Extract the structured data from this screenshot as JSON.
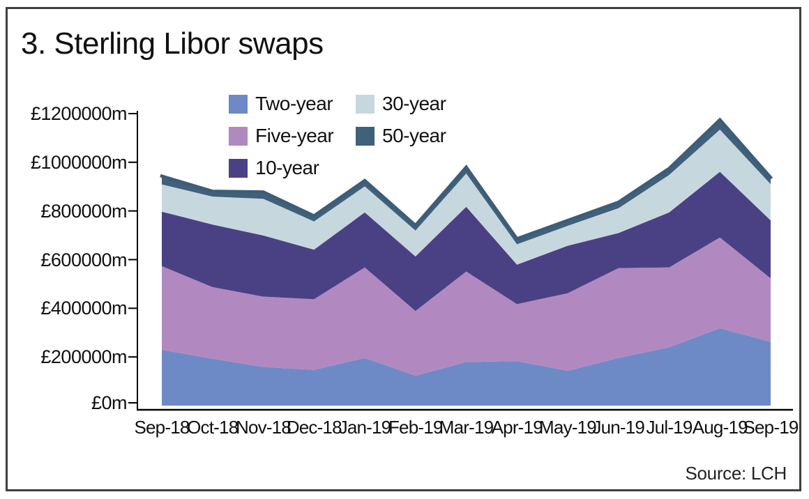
{
  "title": "3. Sterling Libor swaps",
  "source_label": "Source: LCH",
  "chart_data": {
    "type": "area",
    "stacked": true,
    "title": "3. Sterling Libor swaps",
    "xlabel": "",
    "ylabel": "",
    "unit": "£m",
    "grid": false,
    "legend_position": "top-left, two columns",
    "ylim": [
      0,
      1200000
    ],
    "y_ticks": [
      {
        "value": 0,
        "label": "£0m"
      },
      {
        "value": 200000,
        "label": "£200000m"
      },
      {
        "value": 400000,
        "label": "£400000m"
      },
      {
        "value": 600000,
        "label": "£600000m"
      },
      {
        "value": 800000,
        "label": "£800000m"
      },
      {
        "value": 1000000,
        "label": "£1000000m"
      },
      {
        "value": 1200000,
        "label": "£1200000m"
      }
    ],
    "categories": [
      "Sep-18",
      "Oct-18",
      "Nov-18",
      "Dec-18",
      "Jan-19",
      "Feb-19",
      "Mar-19",
      "Apr-19",
      "May-19",
      "Jun-19",
      "Jul-19",
      "Aug-19",
      "Sep-19"
    ],
    "series": [
      {
        "name": "Two-year",
        "color": "#6d8ac6",
        "values": [
          229000,
          193000,
          159000,
          147000,
          196000,
          123000,
          179000,
          183000,
          143000,
          196000,
          240000,
          318000,
          262000
        ]
      },
      {
        "name": "Five-year",
        "color": "#b189c0",
        "values": [
          344000,
          294000,
          289000,
          290000,
          372000,
          266000,
          372000,
          234000,
          319000,
          369000,
          328000,
          373000,
          261000
        ]
      },
      {
        "name": "10-year",
        "color": "#4a4184",
        "values": [
          224000,
          257000,
          251000,
          204000,
          226000,
          224000,
          266000,
          162000,
          195000,
          144000,
          226000,
          270000,
          238000
        ]
      },
      {
        "name": "30-year",
        "color": "#c7d7de",
        "values": [
          112000,
          115000,
          151000,
          116000,
          107000,
          106000,
          137000,
          84000,
          82000,
          102000,
          154000,
          173000,
          149000
        ]
      },
      {
        "name": "50-year",
        "color": "#40607b",
        "values": [
          34000,
          22000,
          28000,
          23000,
          24000,
          22000,
          26000,
          23000,
          22000,
          25000,
          27000,
          41000,
          28000
        ]
      }
    ],
    "top_outline_color": "#3d5d77",
    "axis_color": "#000000"
  }
}
